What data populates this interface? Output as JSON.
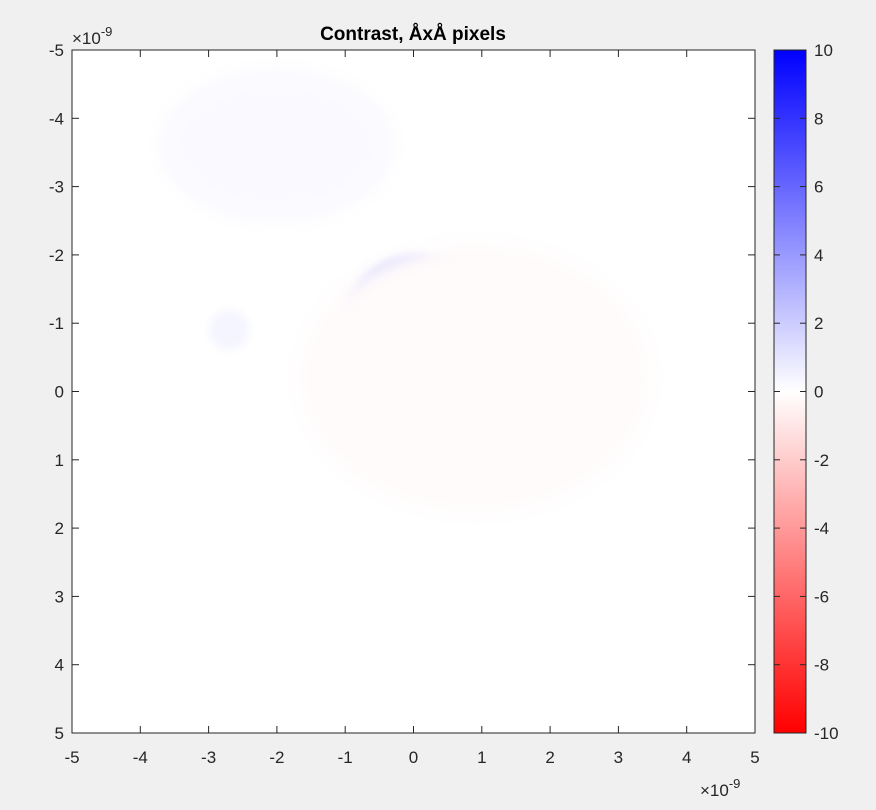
{
  "chart_data": {
    "type": "heatmap",
    "title": "Contrast, ÅxÅ pixels",
    "xlabel": "",
    "ylabel": "",
    "xlim": [
      -5,
      5
    ],
    "ylim": [
      -5,
      5
    ],
    "y_reversed": true,
    "x_ticks": [
      "-5",
      "-4",
      "-3",
      "-2",
      "-1",
      "0",
      "1",
      "2",
      "3",
      "4",
      "5"
    ],
    "y_ticks": [
      "-5",
      "-4",
      "-3",
      "-2",
      "-1",
      "0",
      "1",
      "2",
      "3",
      "4",
      "5"
    ],
    "x_exponent": {
      "base": "×10",
      "power": "-9"
    },
    "y_exponent": {
      "base": "×10",
      "power": "-9"
    },
    "colorbar": {
      "range": [
        -10,
        10
      ],
      "ticks": [
        "10",
        "8",
        "6",
        "4",
        "2",
        "0",
        "-2",
        "-4",
        "-6",
        "-8",
        "-10"
      ],
      "colormap": [
        "#ff0000",
        "#ffffff",
        "#0000ff"
      ]
    },
    "features": [
      {
        "name": "blue ring",
        "cx": 0.05,
        "cy": -0.9,
        "outer_r": 1.1,
        "inner_r": 0.35,
        "value": 2.6
      },
      {
        "name": "faint upper-left blob",
        "cx": -2.0,
        "cy": -3.6,
        "rx": 1.7,
        "ry": 1.1,
        "value": 0.25
      },
      {
        "name": "faint red halo",
        "cx": 0.9,
        "cy": -0.2,
        "rx": 2.6,
        "ry": 2.0,
        "value": -0.15
      },
      {
        "name": "faint small spot",
        "cx": -2.7,
        "cy": -0.9,
        "rx": 0.3,
        "ry": 0.3,
        "value": 0.4
      }
    ]
  }
}
